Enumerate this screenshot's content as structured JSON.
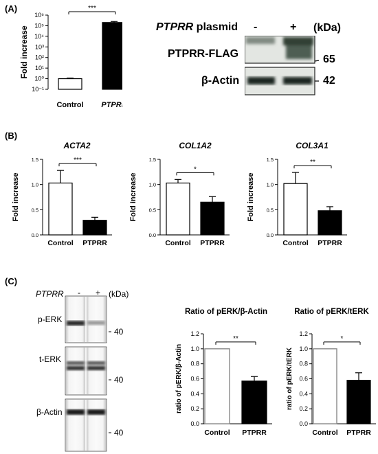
{
  "panels": {
    "a": "(A)",
    "b": "(B)",
    "c": "(C)"
  },
  "blot_a": {
    "plasmid_label": "PTPRR",
    "plasmid_suffix": " plasmid",
    "minus": "-",
    "plus": "+",
    "kda": "(kDa)",
    "band1_label": "PTPRR-FLAG",
    "band1_marker": "65",
    "band2_label": "β-Actin",
    "band2_marker": "42"
  },
  "blot_c": {
    "gene": "PTPRR",
    "minus": "-",
    "plus": "+",
    "kda": "(kDa)",
    "rows": [
      {
        "label": "p-ERK",
        "marker": "40"
      },
      {
        "label": "t-ERK",
        "marker": "40"
      },
      {
        "label": "β-Actin",
        "marker": "40"
      }
    ]
  },
  "chart_data": [
    {
      "type": "bar",
      "panel": "A",
      "categories": [
        "Control",
        "PTPRR"
      ],
      "values": [
        1,
        200000
      ],
      "errors": [
        0.15,
        50000
      ],
      "ylabel": "Fold increase",
      "yscale": "log",
      "ylim": [
        0.1,
        1000000
      ],
      "yticks": [
        "10⁻¹",
        "10⁰",
        "10¹",
        "10²",
        "10³",
        "10⁴",
        "10⁵",
        "10⁶"
      ],
      "significance": "***"
    },
    {
      "type": "bar",
      "panel": "B",
      "title": "ACTA2",
      "categories": [
        "Control",
        "PTPRR"
      ],
      "values": [
        1.03,
        0.29
      ],
      "errors": [
        0.25,
        0.06
      ],
      "ylabel": "Fold increase",
      "ylim": [
        0,
        1.5
      ],
      "yticks": [
        "0.0",
        "0.5",
        "1.0",
        "1.5"
      ],
      "significance": "***"
    },
    {
      "type": "bar",
      "panel": "B",
      "title": "COL1A2",
      "categories": [
        "Control",
        "PTPRR"
      ],
      "values": [
        1.03,
        0.65
      ],
      "errors": [
        0.07,
        0.11
      ],
      "ylabel": "Fold increase",
      "ylim": [
        0,
        1.5
      ],
      "yticks": [
        "0.0",
        "0.5",
        "1.0",
        "1.5"
      ],
      "significance": "*"
    },
    {
      "type": "bar",
      "panel": "B",
      "title": "COL3A1",
      "categories": [
        "Control",
        "PTPRR"
      ],
      "values": [
        1.02,
        0.48
      ],
      "errors": [
        0.22,
        0.08
      ],
      "ylabel": "Fold increase",
      "ylim": [
        0,
        1.5
      ],
      "yticks": [
        "0.0",
        "0.5",
        "1.0",
        "1.5"
      ],
      "significance": "**"
    },
    {
      "type": "bar",
      "panel": "C",
      "title": "Ratio of pERK/β-Actin",
      "categories": [
        "Control",
        "PTPRR"
      ],
      "values": [
        1.0,
        0.57
      ],
      "errors": [
        0,
        0.06
      ],
      "ylabel": "ratio of pERK/β-Actin",
      "ylim": [
        0,
        1.2
      ],
      "yticks": [
        "0.0",
        "0.2",
        "0.4",
        "0.6",
        "0.8",
        "1.0",
        "1.2"
      ],
      "significance": "**"
    },
    {
      "type": "bar",
      "panel": "C",
      "title": "Ratio of pERK/tERK",
      "categories": [
        "Control",
        "PTPRR"
      ],
      "values": [
        1.0,
        0.58
      ],
      "errors": [
        0,
        0.1
      ],
      "ylabel": "ratio of pERK/tERK",
      "ylim": [
        0,
        1.2
      ],
      "yticks": [
        "0.0",
        "0.2",
        "0.4",
        "0.6",
        "0.8",
        "1.0",
        "1.2"
      ],
      "significance": "*"
    }
  ]
}
